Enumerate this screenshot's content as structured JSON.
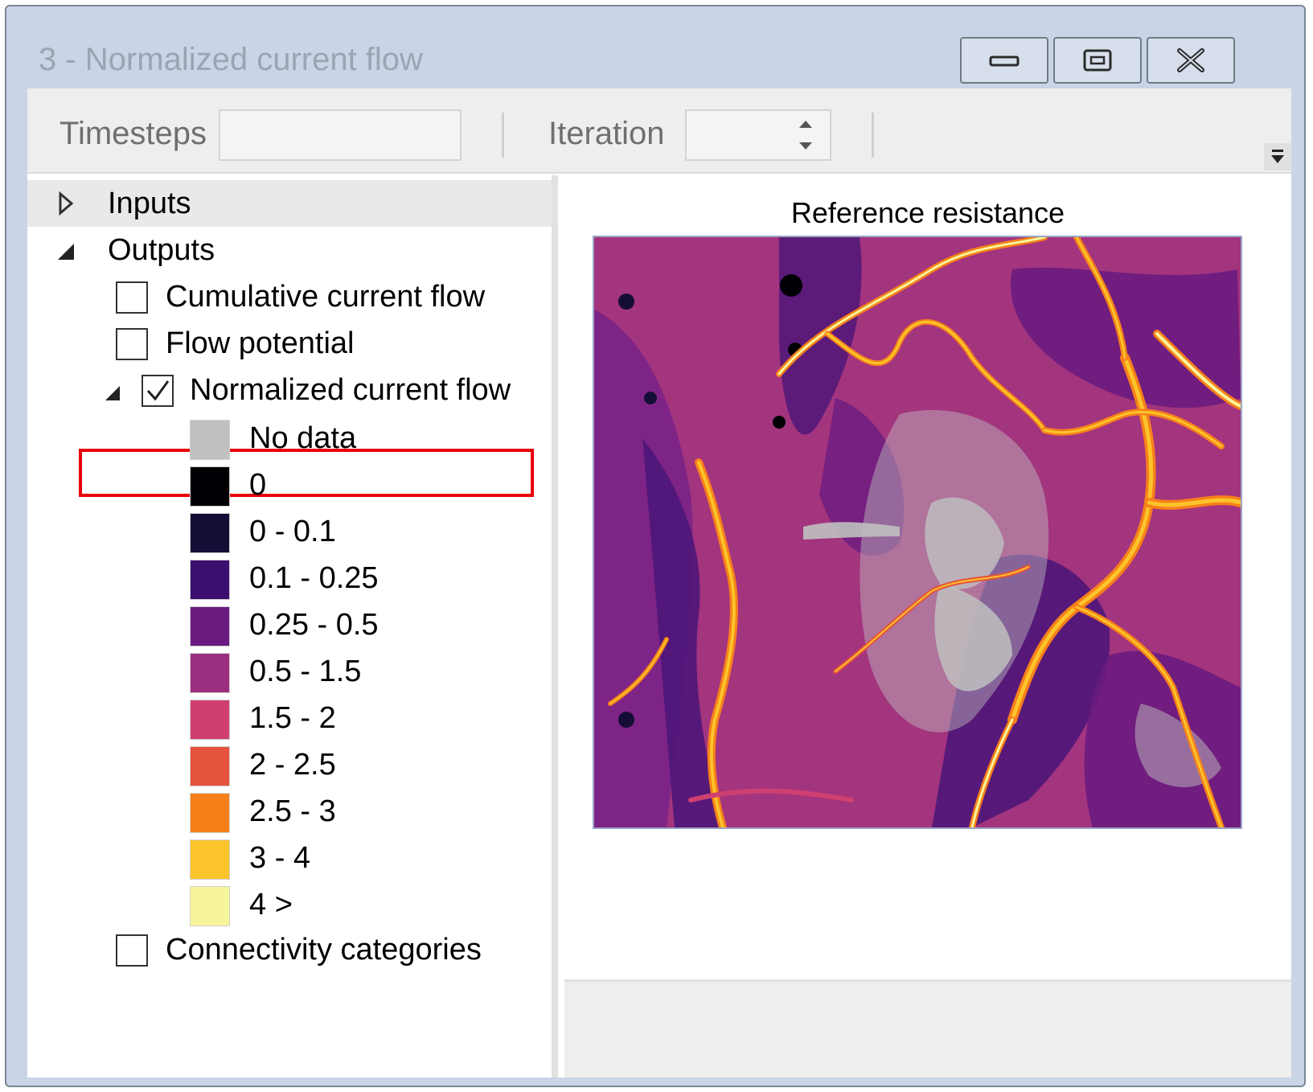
{
  "window": {
    "title": "3 - Normalized current flow",
    "controls": [
      "minimize-icon",
      "maximize-icon",
      "close-icon"
    ]
  },
  "toolbar": {
    "timesteps_label": "Timesteps",
    "timesteps_value": "",
    "iteration_label": "Iteration",
    "iteration_value": ""
  },
  "tree": {
    "inputs_label": "Inputs",
    "outputs_label": "Outputs",
    "items": [
      {
        "label": "Cumulative current flow",
        "checked": false
      },
      {
        "label": "Flow potential",
        "checked": false
      },
      {
        "label": "Normalized current flow",
        "checked": true,
        "highlighted": true
      },
      {
        "label": "Connectivity categories",
        "checked": false
      }
    ],
    "legend": [
      {
        "label": "No data",
        "color": "#c0c0c0"
      },
      {
        "label": "0",
        "color": "#000004"
      },
      {
        "label": "0 - 0.1",
        "color": "#140e36"
      },
      {
        "label": "0.1 - 0.25",
        "color": "#3b0f70"
      },
      {
        "label": "0.25 - 0.5",
        "color": "#6a1b7f"
      },
      {
        "label": "0.5 - 1.5",
        "color": "#9c2e7f"
      },
      {
        "label": "1.5 - 2",
        "color": "#cf4070"
      },
      {
        "label": "2 - 2.5",
        "color": "#e5533d"
      },
      {
        "label": "2.5 - 3",
        "color": "#f7801a"
      },
      {
        "label": "3 - 4",
        "color": "#fbc42b"
      },
      {
        "label": "4 >",
        "color": "#f7f59a"
      }
    ]
  },
  "map": {
    "title": "Reference resistance"
  },
  "colors": {
    "highlight": "#e8000a",
    "window_frame": "#c9d5e6"
  }
}
